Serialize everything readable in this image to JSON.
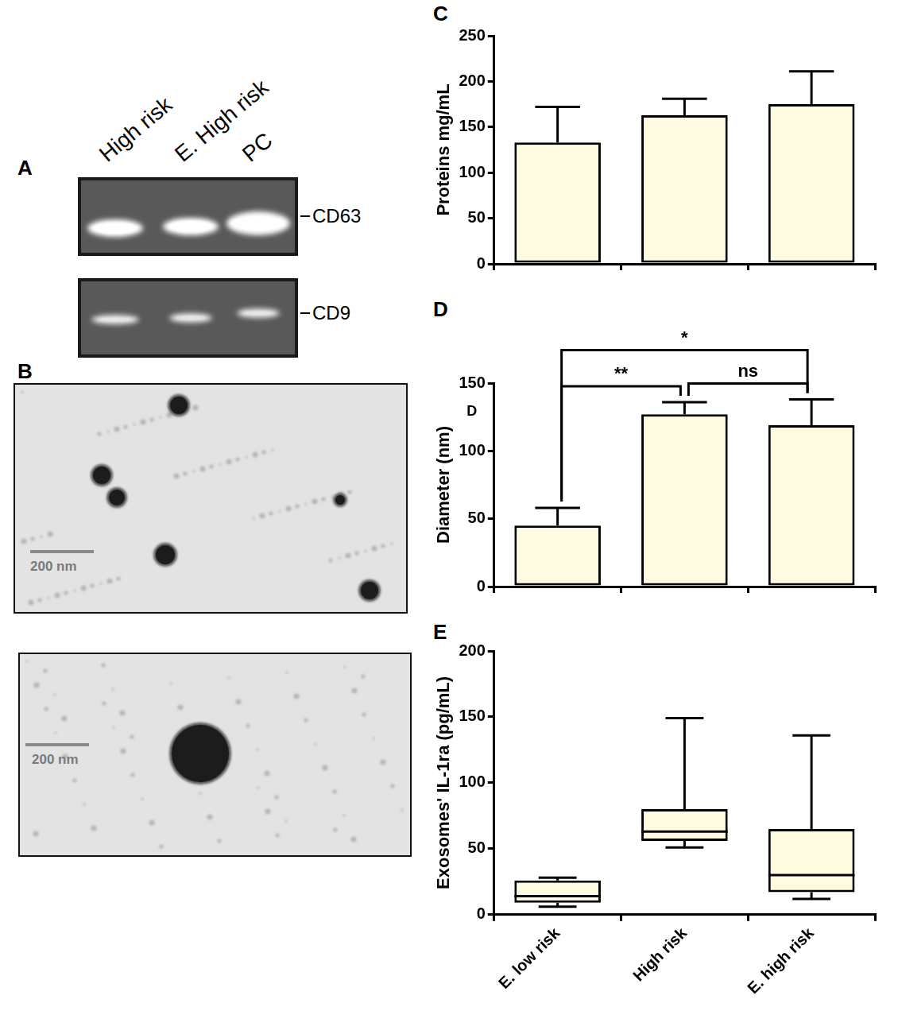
{
  "gel": {
    "title": "A",
    "lanes": [
      "High risk",
      "E. High risk",
      "PC"
    ],
    "markers": [
      "CD63",
      "CD9"
    ]
  },
  "micrographs": {
    "title": "B",
    "scale_bars": [
      "200 nm",
      "200 nm"
    ]
  },
  "chart_data": [
    {
      "title": "C",
      "type": "bar",
      "categories": [
        null,
        null,
        null
      ],
      "values": [
        133,
        163,
        175
      ],
      "errors": [
        39,
        18,
        36
      ],
      "ylabel": "Proteins mg/mL",
      "ylim": [
        0,
        250
      ],
      "yticks": [
        0,
        50,
        100,
        150,
        200,
        250
      ],
      "color": "#fffbe0",
      "grid": false
    },
    {
      "title": "D",
      "type": "bar",
      "categories": [
        null,
        null,
        null
      ],
      "values": [
        45,
        127,
        119
      ],
      "errors": [
        13,
        9,
        19
      ],
      "ylabel": "Diameter (nm)",
      "annotation": "D",
      "ylim": [
        0,
        150
      ],
      "yticks": [
        0,
        50,
        100,
        150
      ],
      "significance": [
        {
          "from": 0,
          "to": 1,
          "label": "**"
        },
        {
          "from": 1,
          "to": 2,
          "label": "ns"
        },
        {
          "from": 0,
          "to": 2,
          "label": "*"
        }
      ],
      "color": "#fffbe0",
      "grid": false
    },
    {
      "title": "E",
      "type": "box",
      "categories": [
        "E. low risk",
        "High risk",
        "E. high risk"
      ],
      "min": [
        6,
        51,
        12
      ],
      "q1": [
        9,
        56,
        17
      ],
      "median": [
        14,
        63,
        30
      ],
      "q3": [
        26,
        80,
        65
      ],
      "max": [
        28,
        149,
        136
      ],
      "ylabel": "Exosomes' IL-1ra (pg/mL)",
      "ylim": [
        0,
        200
      ],
      "yticks": [
        0,
        50,
        100,
        150,
        200
      ],
      "color": "#fffbe0",
      "grid": false
    }
  ]
}
